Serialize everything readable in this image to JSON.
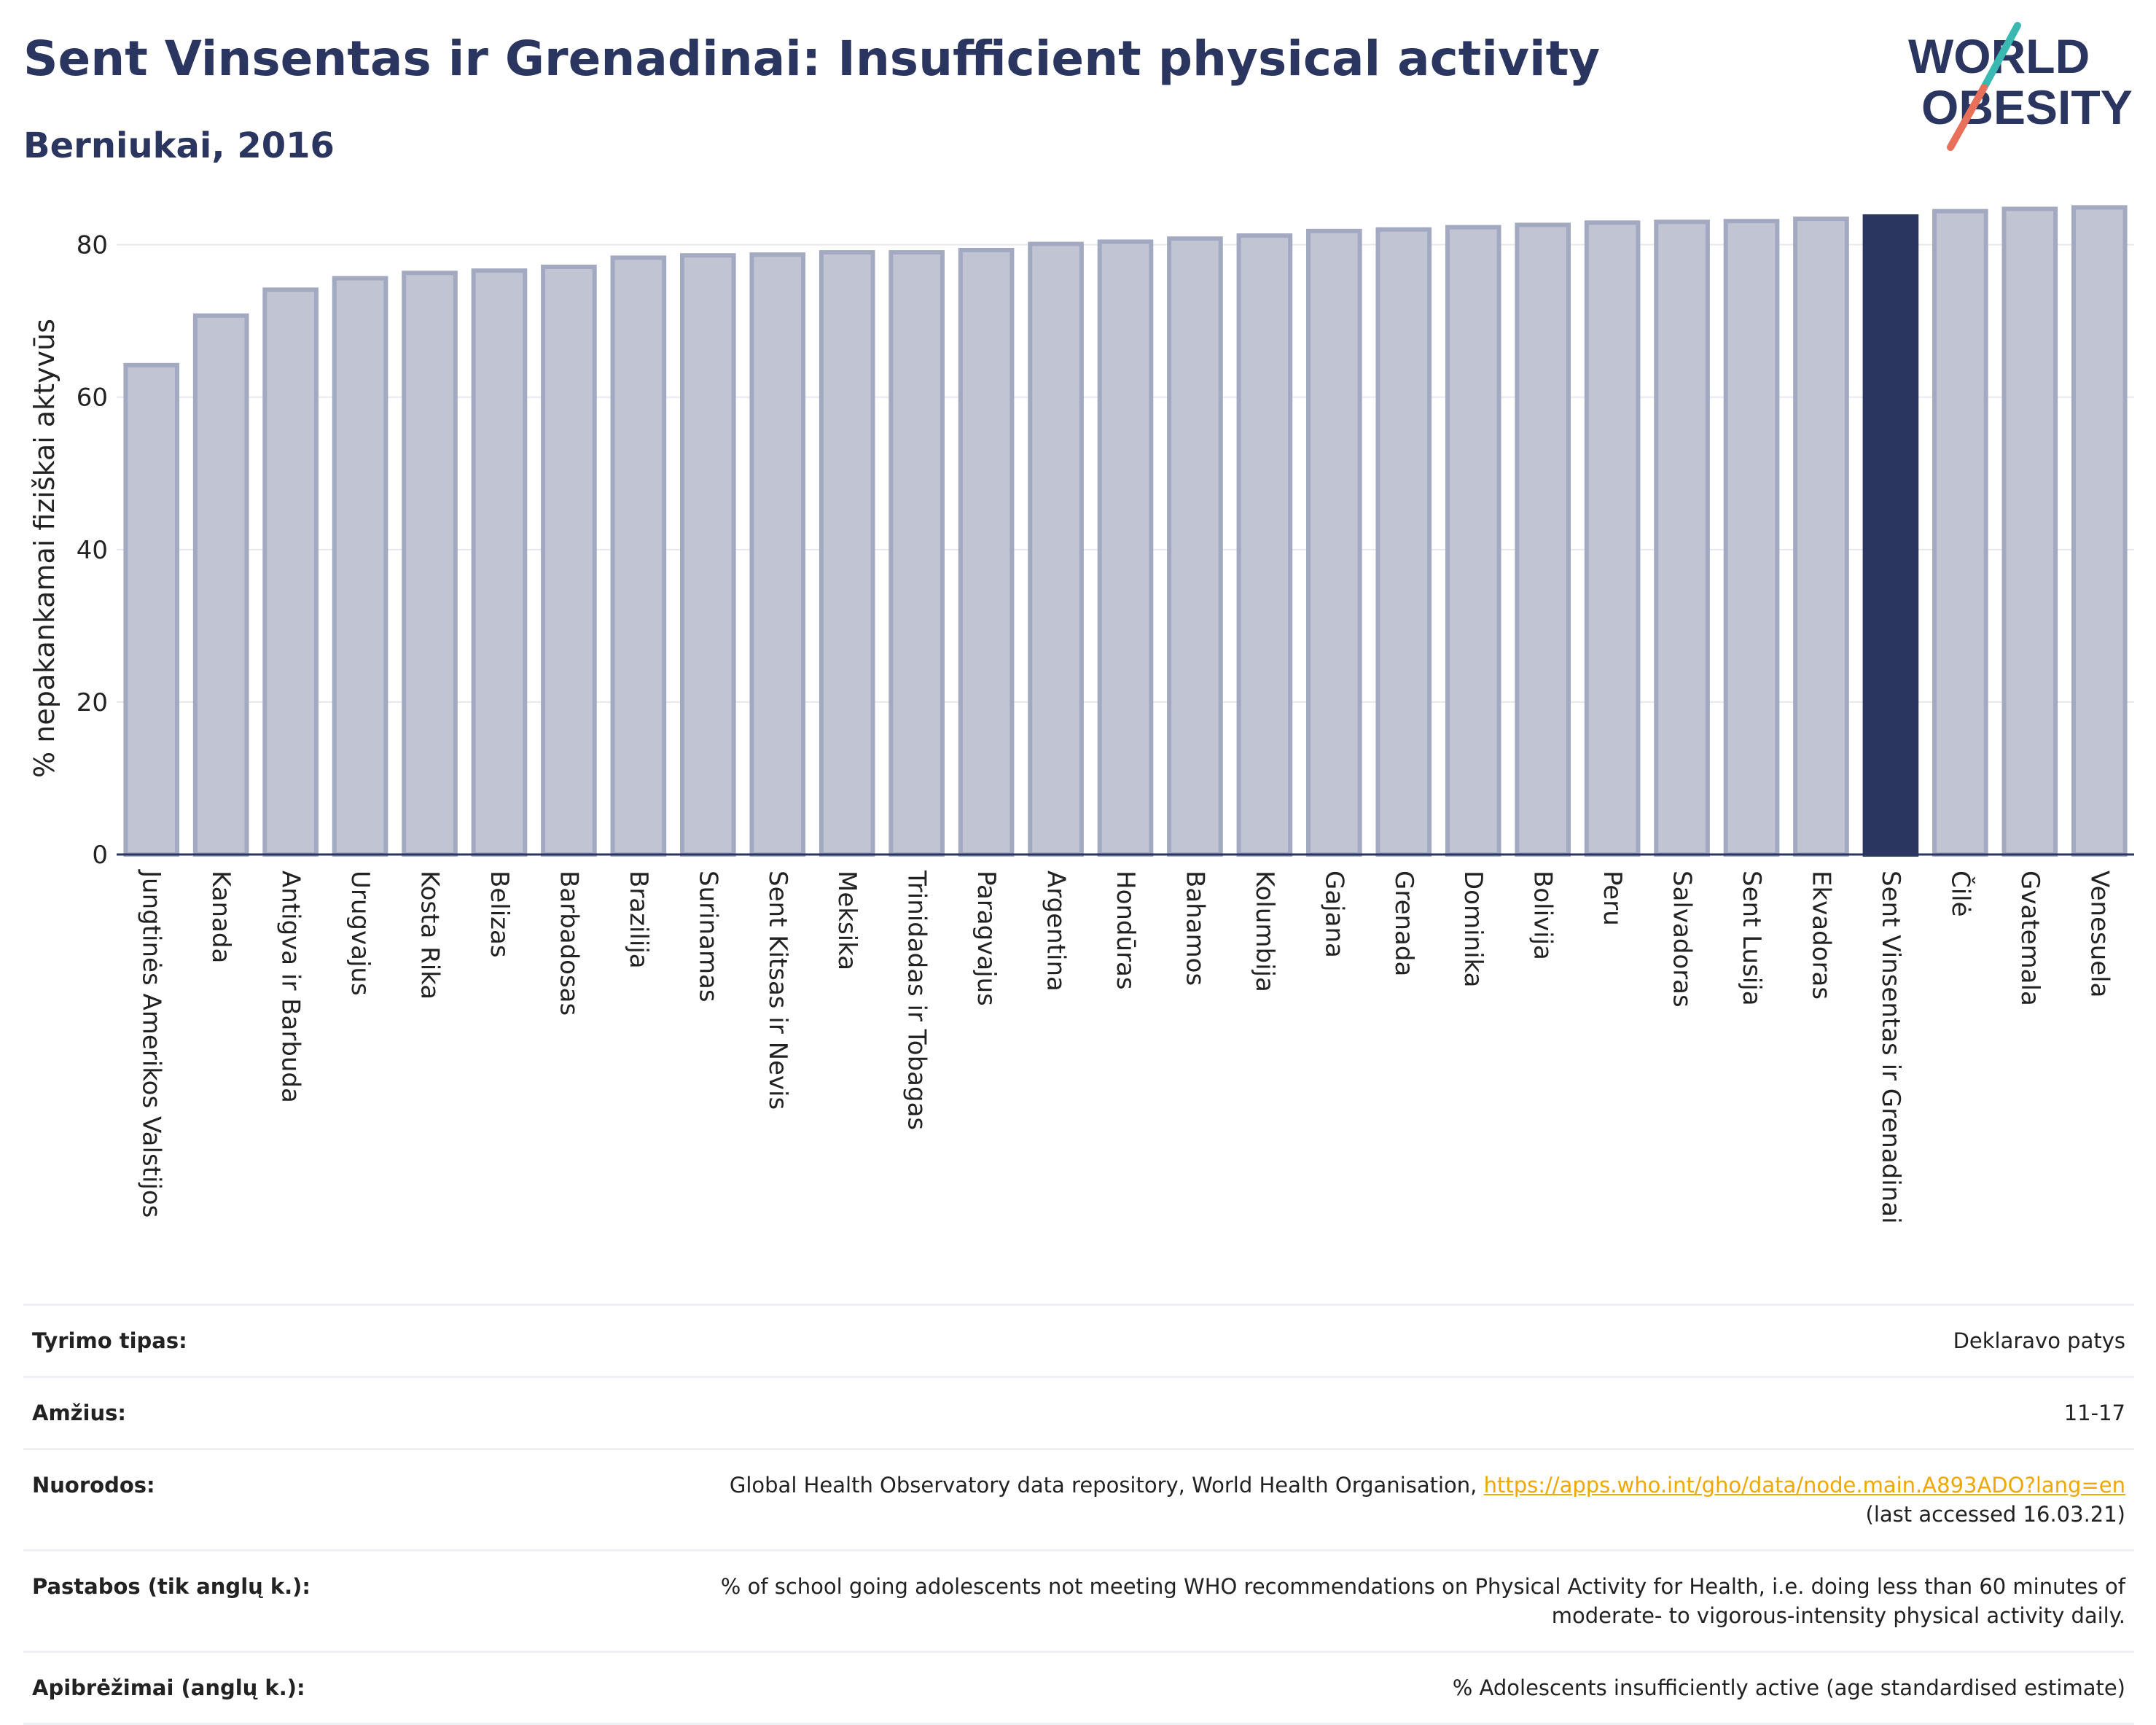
{
  "header": {
    "title": "Sent Vinsentas ir Grenadinai: Insufficient physical activity",
    "subtitle": "Berniukai, 2016",
    "logo_line1": "WORLD",
    "logo_line2": "OBESITY"
  },
  "colors": {
    "bar": "#c1c5d3",
    "bar_outline": "#a3a9c0",
    "highlight": "#2a3560",
    "title": "#2a3560",
    "link": "#f0a800",
    "logo_teal": "#3ab8b2",
    "logo_coral": "#e8705a"
  },
  "chart_data": {
    "type": "bar",
    "ylabel": "% nepakankamai fiziškai aktyvūs",
    "ylim": [
      0,
      88
    ],
    "yticks": [
      0,
      20,
      40,
      60,
      80
    ],
    "grid": true,
    "highlight": "Sent Vinsentas ir Grenadinai",
    "categories": [
      "Jungtinės Amerikos Valstijos",
      "Kanada",
      "Antigva ir Barbuda",
      "Urugvajus",
      "Kosta Rika",
      "Belizas",
      "Barbadosas",
      "Brazilija",
      "Surinamas",
      "Sent Kitsas ir Nevis",
      "Meksika",
      "Trinidadas ir Tobagas",
      "Paragvajus",
      "Argentina",
      "Hondūras",
      "Bahamos",
      "Kolumbija",
      "Gajana",
      "Grenada",
      "Dominika",
      "Bolivija",
      "Peru",
      "Salvadoras",
      "Sent Lusija",
      "Ekvadoras",
      "Sent Vinsentas ir Grenadinai",
      "Čilė",
      "Gvatemala",
      "Venesuela"
    ],
    "values": [
      64.2,
      70.7,
      74.1,
      75.6,
      76.3,
      76.6,
      77.1,
      78.3,
      78.6,
      78.7,
      79.0,
      79.0,
      79.3,
      80.1,
      80.4,
      80.8,
      81.2,
      81.8,
      82.0,
      82.3,
      82.6,
      82.9,
      83.0,
      83.1,
      83.4,
      83.7,
      84.4,
      84.7,
      84.9
    ]
  },
  "meta": [
    {
      "label": "Tyrimo tipas:",
      "value": "Deklaravo patys"
    },
    {
      "label": "Amžius:",
      "value": "11-17"
    },
    {
      "label": "Nuorodos:",
      "value": "Global Health Observatory data repository, World Health Organisation, ",
      "link": "https://apps.who.int/gho/data/node.main.A893ADO?lang=en",
      "value2": "(last accessed 16.03.21)"
    },
    {
      "label": "Pastabos (tik anglų k.):",
      "value": "% of school going adolescents not meeting WHO recommendations on Physical Activity for Health, i.e. doing less than 60 minutes of",
      "value2": "moderate- to vigorous-intensity physical activity daily."
    },
    {
      "label": "Apibrėžimai (anglų k.):",
      "value": "% Adolescents insufficiently active (age standardised estimate)"
    }
  ]
}
